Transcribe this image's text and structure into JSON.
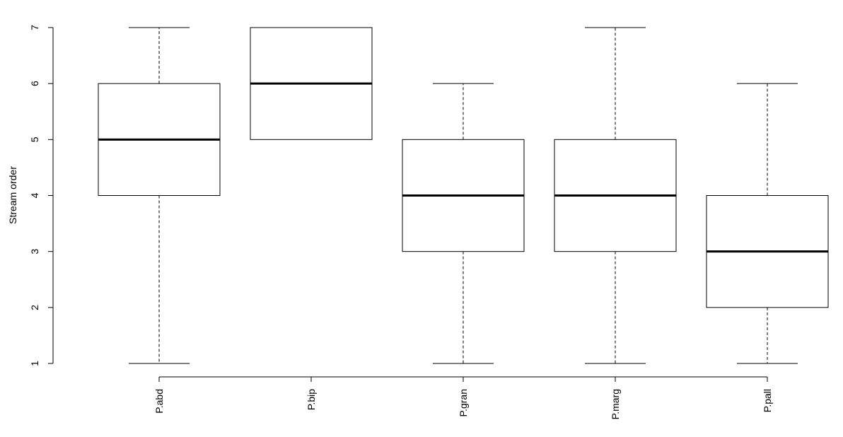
{
  "chart_data": {
    "type": "box",
    "title": "",
    "xlabel": "",
    "ylabel": "Stream order",
    "ylim": [
      1,
      7
    ],
    "yticks": [
      1,
      2,
      3,
      4,
      5,
      6,
      7
    ],
    "categories": [
      "P.abd",
      "P.bip",
      "P.gran",
      "P.marg",
      "P.pall"
    ],
    "boxes": [
      {
        "name": "P.abd",
        "whisker_low": 1,
        "q1": 4,
        "median": 5,
        "q3": 6,
        "whisker_high": 7
      },
      {
        "name": "P.bip",
        "whisker_low": 5,
        "q1": 5,
        "median": 6,
        "q3": 7,
        "whisker_high": 7
      },
      {
        "name": "P.gran",
        "whisker_low": 1,
        "q1": 3,
        "median": 4,
        "q3": 5,
        "whisker_high": 6
      },
      {
        "name": "P.marg",
        "whisker_low": 1,
        "q1": 3,
        "median": 4,
        "q3": 5,
        "whisker_high": 7
      },
      {
        "name": "P.pall",
        "whisker_low": 1,
        "q1": 2,
        "median": 3,
        "q3": 4,
        "whisker_high": 6
      }
    ],
    "grid": false,
    "colors": {
      "box_stroke": "#000000",
      "box_fill": "#ffffff"
    }
  }
}
